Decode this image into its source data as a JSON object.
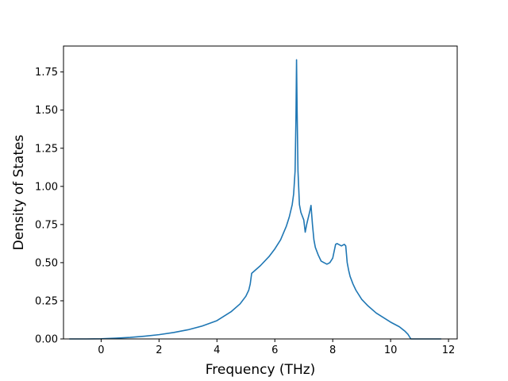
{
  "chart_data": {
    "type": "line",
    "xlabel": "Frequency (THz)",
    "ylabel": "Density of States",
    "xlim": [
      -1.3,
      12.3
    ],
    "ylim": [
      0,
      1.92
    ],
    "x_ticks": [
      0,
      2,
      4,
      6,
      8,
      10,
      12
    ],
    "y_ticks": [
      0.0,
      0.25,
      0.5,
      0.75,
      1.0,
      1.25,
      1.5,
      1.75
    ],
    "x_tick_labels": [
      "0",
      "2",
      "4",
      "6",
      "8",
      "10",
      "12"
    ],
    "y_tick_labels": [
      "0.00",
      "0.25",
      "0.50",
      "0.75",
      "1.00",
      "1.25",
      "1.50",
      "1.75"
    ],
    "grid": false,
    "line_color": "#1f77b4",
    "series": [
      {
        "x": [
          -1.1,
          -0.5,
          0.0,
          0.5,
          1.0,
          1.5,
          2.0,
          2.5,
          3.0,
          3.5,
          4.0,
          4.5,
          4.8,
          5.0,
          5.1,
          5.15,
          5.2,
          5.5,
          5.8,
          6.0,
          6.2,
          6.4,
          6.5,
          6.6,
          6.65,
          6.7,
          6.73,
          6.75,
          6.77,
          6.8,
          6.85,
          6.9,
          7.0,
          7.05,
          7.1,
          7.2,
          7.25,
          7.3,
          7.35,
          7.4,
          7.5,
          7.6,
          7.7,
          7.8,
          7.9,
          8.0,
          8.1,
          8.15,
          8.2,
          8.3,
          8.4,
          8.45,
          8.5,
          8.55,
          8.6,
          8.7,
          8.8,
          9.0,
          9.2,
          9.5,
          10.0,
          10.3,
          10.5,
          10.6,
          10.65,
          10.7,
          11.0,
          11.5,
          11.75
        ],
        "y": [
          0,
          0,
          0.001,
          0.005,
          0.01,
          0.018,
          0.028,
          0.042,
          0.06,
          0.085,
          0.12,
          0.18,
          0.23,
          0.28,
          0.32,
          0.36,
          0.43,
          0.48,
          0.54,
          0.59,
          0.65,
          0.74,
          0.8,
          0.88,
          0.95,
          1.1,
          1.45,
          1.83,
          1.5,
          1.1,
          0.88,
          0.83,
          0.78,
          0.7,
          0.75,
          0.83,
          0.875,
          0.75,
          0.65,
          0.6,
          0.55,
          0.51,
          0.5,
          0.49,
          0.5,
          0.53,
          0.62,
          0.625,
          0.62,
          0.61,
          0.62,
          0.61,
          0.5,
          0.45,
          0.41,
          0.36,
          0.32,
          0.26,
          0.22,
          0.17,
          0.11,
          0.08,
          0.05,
          0.03,
          0.015,
          0.0,
          0,
          0,
          0
        ]
      }
    ]
  }
}
